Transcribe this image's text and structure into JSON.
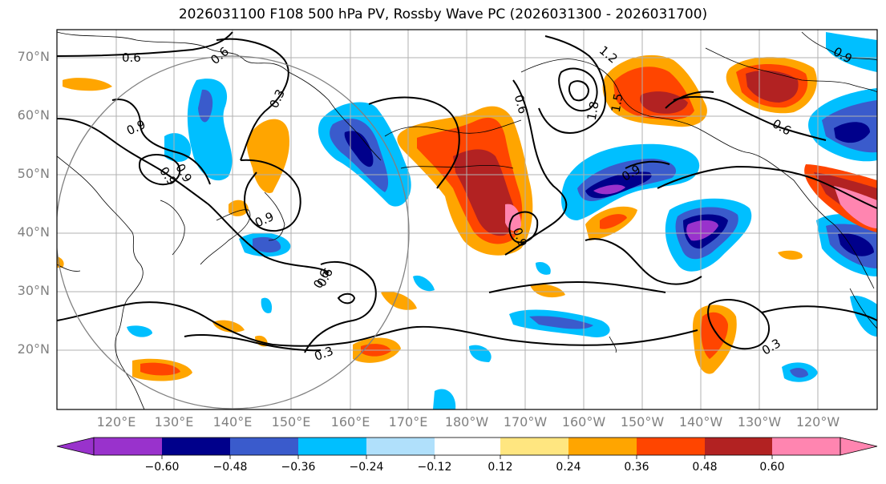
{
  "title": "2026031100 F108 500 hPa PV, Rossby Wave PC (2026031300 - 2026031700)",
  "lat_labels": [
    "70°N",
    "60°N",
    "50°N",
    "40°N",
    "30°N",
    "20°N"
  ],
  "lon_labels": [
    "120°E",
    "130°E",
    "140°E",
    "150°E",
    "160°E",
    "170°E",
    "180°W",
    "170°W",
    "160°W",
    "150°W",
    "140°W",
    "130°W",
    "120°W"
  ],
  "contour_labels": [
    "0.6",
    "0.6",
    "0.3",
    "0.9",
    "0.9",
    "0.9",
    "0.6",
    "0.3",
    "0.6",
    "1.2",
    "1.5",
    "1.8",
    "0.9",
    "0.9",
    "0.6",
    "0.9",
    "0.3",
    "0.9",
    "0.6"
  ],
  "colorbar": {
    "ticks": [
      "−0.60",
      "−0.48",
      "−0.36",
      "−0.24",
      "−0.12",
      "0.12",
      "0.24",
      "0.36",
      "0.48",
      "0.60"
    ],
    "colors": [
      "#9932cc",
      "#00008b",
      "#3a5bcc",
      "#00bfff",
      "#b0e0fb",
      "#ffffff",
      "#ffe680",
      "#ffa500",
      "#ff4500",
      "#b22222",
      "#ff85b0"
    ]
  },
  "colors": {
    "neg_dark": "#00008b",
    "neg_mid": "#3a5bcc",
    "neg_light": "#00bfff",
    "neg_pale": "#b0e0fb",
    "neg_extreme": "#9932cc",
    "pos_pale": "#ffe680",
    "pos_light": "#ffa500",
    "pos_mid": "#ff4500",
    "pos_dark": "#b22222",
    "pos_extreme": "#ff85b0"
  }
}
